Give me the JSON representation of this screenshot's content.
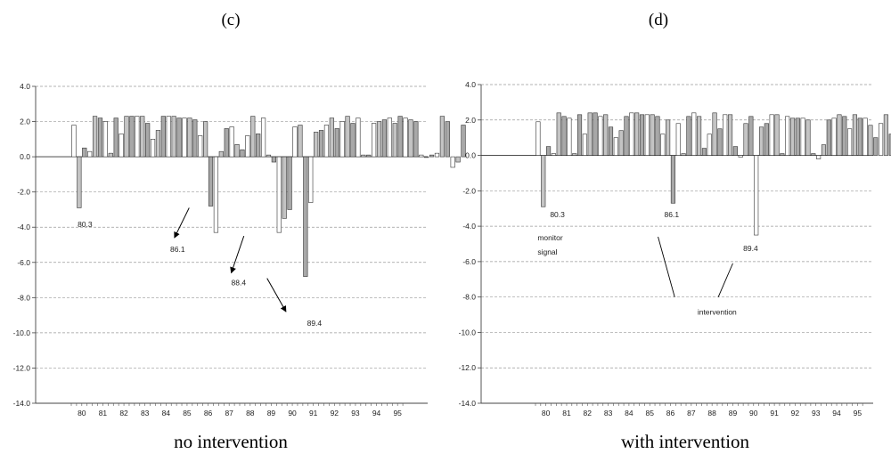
{
  "chart_data": [
    {
      "type": "bar",
      "panel": "(c)",
      "caption": "no intervention",
      "ylim": [
        -14.0,
        4.0
      ],
      "yticks": [
        "4.0",
        "2.0",
        "0.0",
        "-2.0",
        "-4.0",
        "-6.0",
        "-8.0",
        "-10.0",
        "-12.0",
        "-14.0"
      ],
      "xticks": [
        "80",
        "81",
        "82",
        "83",
        "84",
        "85",
        "86",
        "87",
        "88",
        "89",
        "90",
        "91",
        "92",
        "93",
        "94",
        "95"
      ],
      "grid": true,
      "bars_per_year": 4,
      "x_start": 80,
      "values": [
        1.8,
        -2.9,
        0.5,
        0.3,
        2.3,
        2.2,
        2.0,
        0.2,
        2.2,
        1.3,
        2.3,
        2.3,
        2.3,
        2.3,
        1.9,
        1.0,
        1.5,
        2.3,
        2.3,
        2.3,
        2.2,
        2.2,
        2.2,
        2.1,
        1.2,
        2.0,
        -2.8,
        -4.3,
        0.3,
        1.6,
        1.7,
        0.7,
        0.4,
        1.2,
        2.3,
        1.3,
        2.2,
        0.1,
        -0.3,
        -4.3,
        -3.5,
        -3.0,
        1.7,
        1.8,
        -6.8,
        -2.6,
        1.4,
        1.5,
        1.8,
        2.2,
        1.6,
        2.0,
        2.3,
        1.9,
        2.2,
        0.1,
        0.1,
        1.9,
        2.0,
        2.1,
        2.2,
        1.9,
        2.3,
        2.2,
        2.1,
        2.0,
        0.1,
        0.0,
        0.1,
        0.2,
        2.3,
        2.0,
        -0.6,
        -0.3,
        1.8
      ],
      "annotations": [
        {
          "label": "80.3",
          "x": 80.3,
          "y": -4.0
        },
        {
          "label": "86.1",
          "x": 84.7,
          "y": -5.4,
          "arrow_from": [
            85.6,
            -2.9
          ],
          "arrow_to": [
            84.9,
            -4.6
          ]
        },
        {
          "label": "88.4",
          "x": 87.6,
          "y": -7.3,
          "arrow_from": [
            88.2,
            -4.5
          ],
          "arrow_to": [
            87.6,
            -6.6
          ]
        },
        {
          "label": "89.4",
          "x": 91.2,
          "y": -9.6,
          "arrow_from": [
            89.3,
            -6.9
          ],
          "arrow_to": [
            90.2,
            -8.8
          ]
        }
      ]
    },
    {
      "type": "bar",
      "panel": "(d)",
      "caption": "with intervention",
      "ylim": [
        -14.0,
        4.0
      ],
      "yticks": [
        "4.0",
        "2.0",
        "0.0",
        "-2.0",
        "-4.0",
        "-6.0",
        "-8.0",
        "-10.0",
        "-12.0",
        "-14.0"
      ],
      "xticks": [
        "80",
        "81",
        "82",
        "83",
        "84",
        "85",
        "86",
        "87",
        "88",
        "89",
        "90",
        "91",
        "92",
        "93",
        "94",
        "95"
      ],
      "grid": true,
      "bars_per_year": 4,
      "x_start": 80,
      "values": [
        1.9,
        -2.9,
        0.5,
        0.1,
        2.4,
        2.2,
        2.1,
        0.1,
        2.3,
        1.2,
        2.4,
        2.4,
        2.2,
        2.3,
        1.6,
        1.0,
        1.4,
        2.2,
        2.4,
        2.4,
        2.3,
        2.3,
        2.3,
        2.2,
        1.2,
        2.0,
        -2.7,
        1.8,
        0.1,
        2.2,
        2.4,
        2.2,
        0.4,
        1.2,
        2.4,
        1.5,
        2.3,
        2.3,
        0.5,
        -0.1,
        1.8,
        2.2,
        -4.5,
        1.6,
        1.8,
        2.3,
        2.3,
        0.1,
        2.2,
        2.1,
        2.1,
        2.1,
        2.0,
        0.1,
        -0.2,
        0.6,
        2.0,
        2.1,
        2.3,
        2.2,
        1.5,
        2.3,
        2.1,
        2.1,
        1.7,
        1.0,
        1.8,
        2.3,
        1.2,
        1.5,
        2.0,
        2.0
      ],
      "annotations": [
        {
          "label": "80.3",
          "x": 80.7,
          "y": -3.5
        },
        {
          "label": "86.1",
          "x": 86.2,
          "y": -3.5
        },
        {
          "label": "monitor",
          "x": 80.1,
          "y": -4.8
        },
        {
          "label": "signal",
          "x": 80.1,
          "y": -5.6
        },
        {
          "label": "89.4",
          "x": 90.0,
          "y": -5.4
        },
        {
          "label": "intervention",
          "x": 87.8,
          "y": -9.0
        }
      ],
      "pointer_lines": [
        {
          "from": [
            86.7,
            -8.0
          ],
          "to": [
            85.9,
            -4.6
          ]
        },
        {
          "from": [
            88.8,
            -8.0
          ],
          "to": [
            89.5,
            -6.1
          ]
        }
      ]
    }
  ]
}
